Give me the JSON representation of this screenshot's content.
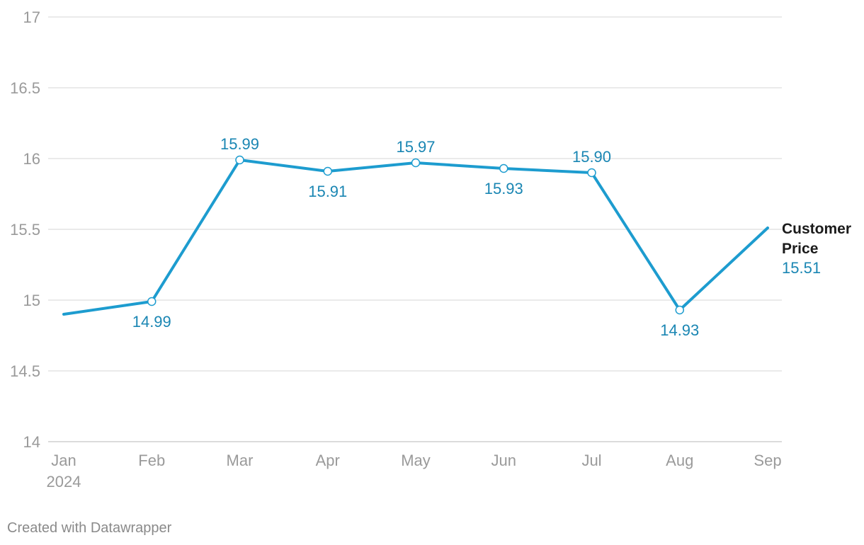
{
  "chart_data": {
    "type": "line",
    "title": "",
    "xlabel": "",
    "ylabel": "",
    "categories": [
      "Jan",
      "Feb",
      "Mar",
      "Apr",
      "May",
      "Jun",
      "Jul",
      "Aug",
      "Sep"
    ],
    "x_sublabels": [
      "2024",
      "",
      "",
      "",
      "",
      "",
      "",
      "",
      ""
    ],
    "ylim": [
      14,
      17
    ],
    "yticks": [
      "14",
      "14.5",
      "15",
      "15.5",
      "16",
      "16.5",
      "17"
    ],
    "grid": true,
    "series": [
      {
        "name": "Customer Price",
        "name_lines": [
          "Customer",
          "Price"
        ],
        "color": "#1d9ccf",
        "label_color": "#1a86b3",
        "values": [
          14.9,
          14.99,
          15.99,
          15.91,
          15.97,
          15.93,
          15.9,
          14.93,
          15.51
        ],
        "data_labels": [
          "",
          "14.99",
          "15.99",
          "15.91",
          "15.97",
          "15.93",
          "15.90",
          "14.93",
          ""
        ],
        "label_position": [
          "",
          "below",
          "above",
          "below",
          "above",
          "below",
          "above",
          "below",
          ""
        ],
        "last_value_label": "15.51"
      }
    ]
  },
  "footer": {
    "credit": "Created with Datawrapper"
  }
}
